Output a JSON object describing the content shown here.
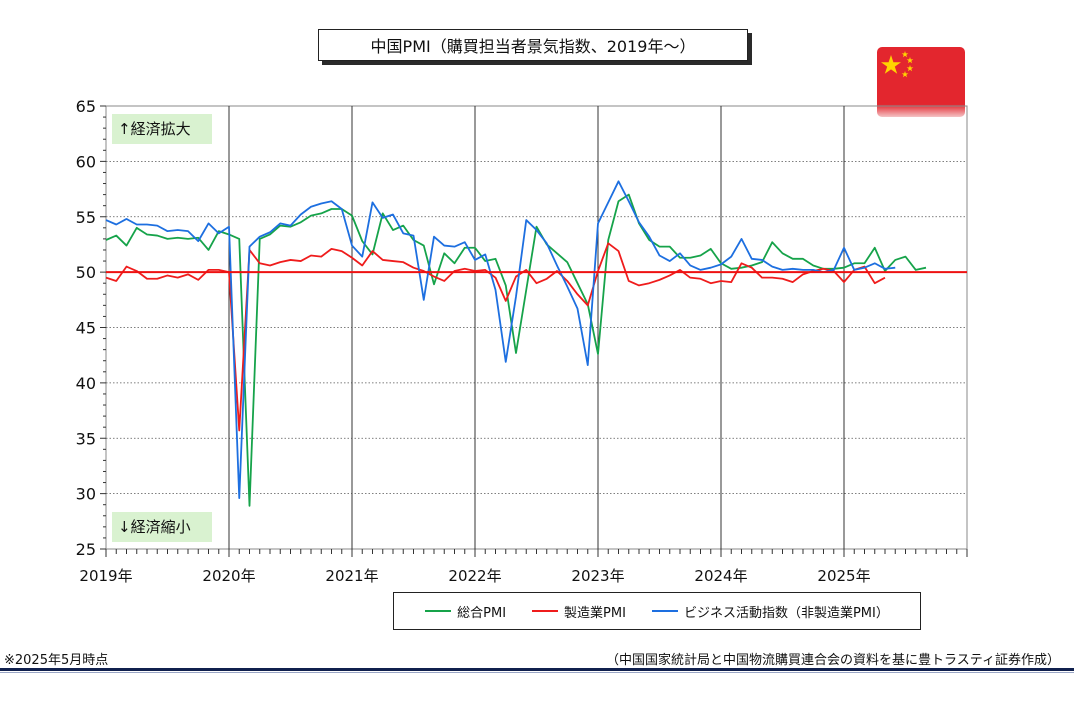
{
  "title": "中国PMI（購買担当者景気指数、2019年～）",
  "note": "※2025年5月時点",
  "source": "（中国国家統計局と中国物流購買連合会の資料を基に豊トラスティ証券作成）",
  "colors": {
    "reference_line": "#ee1111",
    "annotation_bg": "#d9f2d0"
  },
  "chart_data": {
    "type": "line",
    "y_ticks": [
      "65",
      "60",
      "55",
      "50",
      "45",
      "40",
      "35",
      "30",
      "25"
    ],
    "x_ticks": [
      "2019年",
      "2020年",
      "2021年",
      "2022年",
      "2023年",
      "2024年",
      "2025年"
    ],
    "ylim": [
      25,
      65
    ],
    "x_months_total": 84,
    "reference_line": 50,
    "grid": "horizontal dotted, vertical solid at each year",
    "annotations": {
      "upper": "↑経済拡大",
      "lower": "↓経済縮小"
    },
    "legend_position": "bottom",
    "series": [
      {
        "name": "総合PMI",
        "color": "#16a34a",
        "values": [
          52.9,
          53.3,
          52.4,
          54.0,
          53.4,
          53.3,
          53.0,
          53.1,
          53.0,
          53.1,
          52.0,
          53.7,
          53.4,
          53.0,
          28.9,
          53.0,
          53.4,
          54.2,
          54.1,
          54.5,
          55.1,
          55.3,
          55.7,
          55.7,
          55.1,
          52.8,
          51.6,
          55.3,
          53.8,
          54.2,
          52.9,
          52.4,
          48.9,
          51.7,
          50.8,
          52.2,
          52.2,
          51.0,
          51.2,
          48.8,
          42.7,
          48.4,
          54.1,
          52.5,
          51.7,
          50.9,
          49.0,
          47.1,
          42.6,
          52.9,
          56.4,
          57.0,
          54.4,
          52.9,
          52.3,
          52.3,
          51.3,
          51.3,
          51.5,
          52.1,
          50.8,
          50.3,
          50.4,
          50.6,
          50.9,
          52.7,
          51.7,
          51.2,
          51.2,
          50.6,
          50.3,
          50.3,
          50.4,
          50.8,
          50.8,
          52.2,
          50.1,
          51.1,
          51.4,
          50.2,
          50.4
        ]
      },
      {
        "name": "製造業PMI",
        "color": "#ef1c1c",
        "values": [
          49.5,
          49.2,
          50.5,
          50.1,
          49.4,
          49.4,
          49.7,
          49.5,
          49.8,
          49.3,
          50.2,
          50.2,
          50.0,
          35.7,
          52.0,
          50.8,
          50.6,
          50.9,
          51.1,
          51.0,
          51.5,
          51.4,
          52.1,
          51.9,
          51.3,
          50.6,
          51.9,
          51.1,
          51.0,
          50.9,
          50.4,
          50.1,
          49.6,
          49.2,
          50.1,
          50.3,
          50.1,
          50.2,
          49.5,
          47.4,
          49.6,
          50.2,
          49.0,
          49.4,
          50.1,
          49.2,
          48.0,
          47.0,
          50.1,
          52.6,
          51.9,
          49.2,
          48.8,
          49.0,
          49.3,
          49.7,
          50.2,
          49.5,
          49.4,
          49.0,
          49.2,
          49.1,
          50.8,
          50.4,
          49.5,
          49.5,
          49.4,
          49.1,
          49.8,
          50.1,
          50.3,
          50.1,
          49.1,
          50.2,
          50.5,
          49.0,
          49.5
        ]
      },
      {
        "name": "ビジネス活動指数（非製造業PMI）",
        "color": "#1d6fe0",
        "values": [
          54.7,
          54.3,
          54.8,
          54.3,
          54.3,
          54.2,
          53.7,
          53.8,
          53.7,
          52.8,
          54.4,
          53.5,
          54.1,
          29.6,
          52.3,
          53.2,
          53.6,
          54.4,
          54.2,
          55.2,
          55.9,
          56.2,
          56.4,
          55.7,
          52.4,
          51.4,
          56.3,
          54.9,
          55.2,
          53.5,
          53.3,
          47.5,
          53.2,
          52.4,
          52.3,
          52.7,
          51.1,
          51.6,
          48.4,
          41.9,
          47.8,
          54.7,
          53.8,
          52.6,
          50.6,
          48.7,
          46.7,
          41.6,
          54.4,
          56.3,
          58.2,
          56.4,
          54.5,
          53.2,
          51.5,
          51.0,
          51.7,
          50.6,
          50.2,
          50.4,
          50.7,
          51.4,
          53.0,
          51.2,
          51.1,
          50.5,
          50.2,
          50.3,
          50.2,
          50.2,
          50.0,
          50.2,
          52.2,
          50.2,
          50.4,
          50.8,
          50.3,
          50.4
        ]
      }
    ]
  }
}
